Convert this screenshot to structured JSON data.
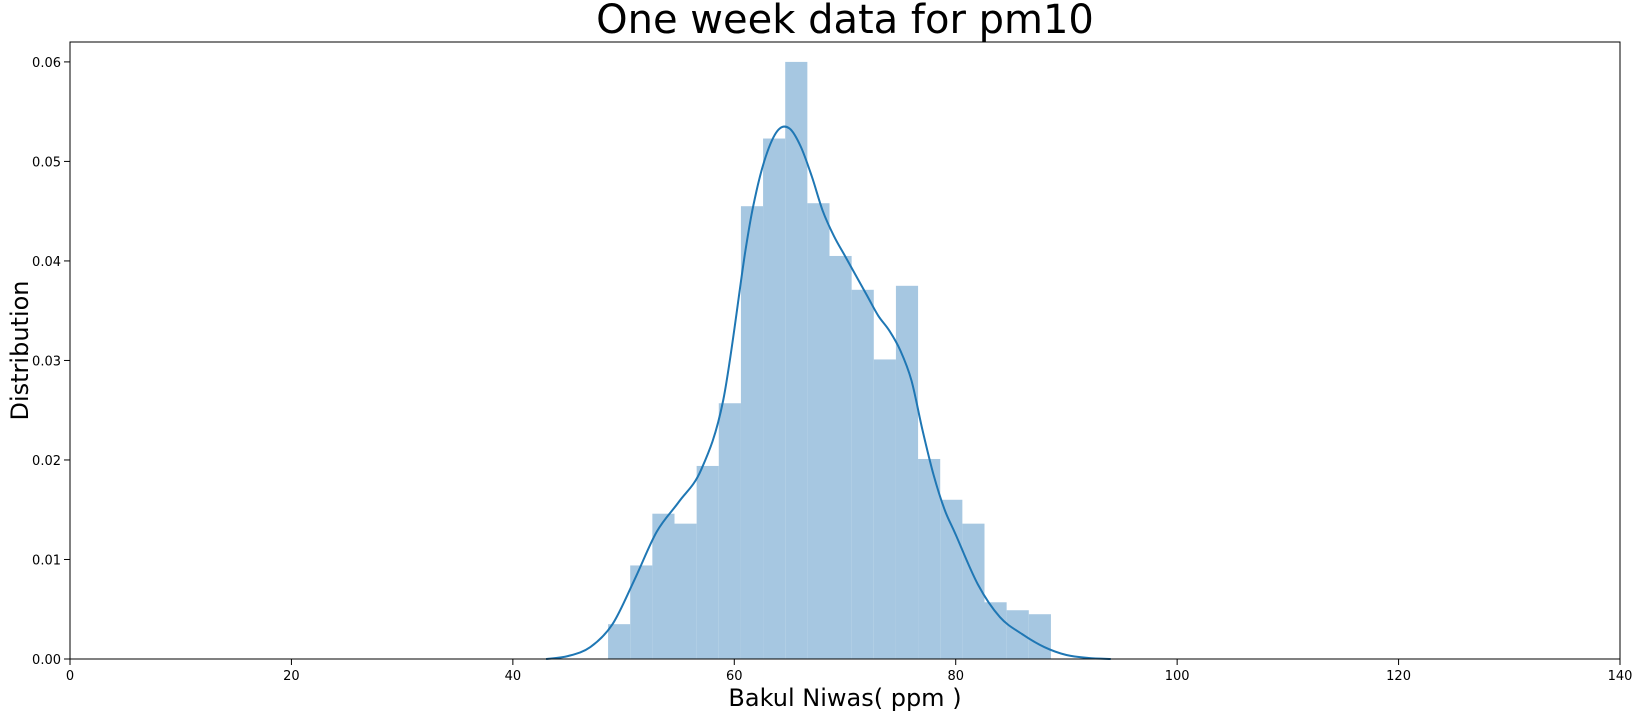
{
  "chart_data": {
    "type": "histogram",
    "title": "One week data for pm10",
    "xlabel": "Bakul Niwas( ppm )",
    "ylabel": "Distribution",
    "xlim": [
      0,
      140
    ],
    "ylim": [
      0,
      0.062
    ],
    "x_ticks": [
      0,
      20,
      40,
      60,
      80,
      100,
      120,
      140
    ],
    "y_ticks": [
      0.0,
      0.01,
      0.02,
      0.03,
      0.04,
      0.05,
      0.06
    ],
    "grid": false,
    "bar_color": "#a6c7e1",
    "line_color": "#1f77b4",
    "bins": [
      {
        "x0": 48.6,
        "x1": 50.6,
        "value": 0.0035
      },
      {
        "x0": 50.6,
        "x1": 52.6,
        "value": 0.0094
      },
      {
        "x0": 52.6,
        "x1": 54.6,
        "value": 0.0146
      },
      {
        "x0": 54.6,
        "x1": 56.6,
        "value": 0.0136
      },
      {
        "x0": 56.6,
        "x1": 58.6,
        "value": 0.0194
      },
      {
        "x0": 58.6,
        "x1": 60.6,
        "value": 0.0257
      },
      {
        "x0": 60.6,
        "x1": 62.6,
        "value": 0.0455
      },
      {
        "x0": 62.6,
        "x1": 64.6,
        "value": 0.0523
      },
      {
        "x0": 64.6,
        "x1": 66.6,
        "value": 0.06
      },
      {
        "x0": 66.6,
        "x1": 68.6,
        "value": 0.0458
      },
      {
        "x0": 68.6,
        "x1": 70.6,
        "value": 0.0405
      },
      {
        "x0": 70.6,
        "x1": 72.6,
        "value": 0.0371
      },
      {
        "x0": 72.6,
        "x1": 74.6,
        "value": 0.0301
      },
      {
        "x0": 74.6,
        "x1": 76.6,
        "value": 0.0375
      },
      {
        "x0": 76.6,
        "x1": 78.6,
        "value": 0.0201
      },
      {
        "x0": 78.6,
        "x1": 80.6,
        "value": 0.016
      },
      {
        "x0": 80.6,
        "x1": 82.6,
        "value": 0.0136
      },
      {
        "x0": 82.6,
        "x1": 84.6,
        "value": 0.0057
      },
      {
        "x0": 84.6,
        "x1": 86.6,
        "value": 0.0049
      },
      {
        "x0": 86.6,
        "x1": 88.6,
        "value": 0.0045
      }
    ],
    "kde": {
      "x": [
        43,
        45,
        47,
        49,
        51,
        53,
        55,
        57,
        59,
        61,
        62,
        63,
        64,
        65,
        66,
        67,
        68,
        69,
        70,
        71,
        72,
        73,
        74,
        75,
        76,
        77,
        78,
        79,
        80,
        82,
        84,
        86,
        88,
        90,
        92,
        94
      ],
      "y": [
        0.0,
        0.0003,
        0.0012,
        0.0035,
        0.008,
        0.0128,
        0.0158,
        0.019,
        0.026,
        0.041,
        0.047,
        0.051,
        0.0532,
        0.0533,
        0.0515,
        0.0485,
        0.045,
        0.0425,
        0.0405,
        0.0385,
        0.0365,
        0.0345,
        0.033,
        0.031,
        0.028,
        0.023,
        0.0185,
        0.015,
        0.0125,
        0.0075,
        0.0042,
        0.0025,
        0.0012,
        0.0004,
        0.0001,
        0.0
      ]
    }
  }
}
